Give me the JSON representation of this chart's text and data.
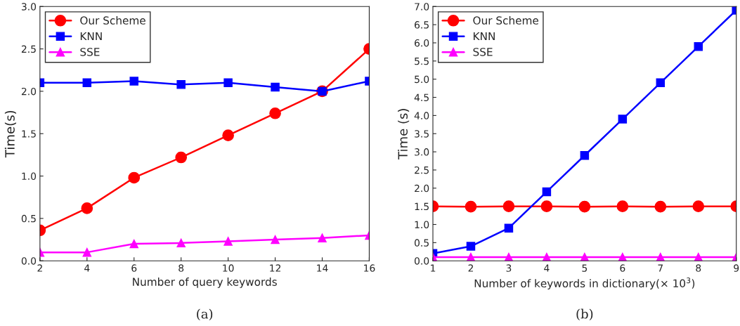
{
  "chart_data": [
    {
      "type": "line",
      "xlabel": "Number of query keywords",
      "ylabel": "Time(s)",
      "annotations": [
        "(a)"
      ],
      "x": [
        2,
        4,
        6,
        8,
        10,
        12,
        14,
        16
      ],
      "series": [
        {
          "name": "Our Scheme",
          "color": "#ff0000",
          "marker": "circle",
          "values": [
            0.36,
            0.62,
            0.98,
            1.22,
            1.48,
            1.74,
            2.0,
            2.5
          ]
        },
        {
          "name": "KNN",
          "color": "#0000ff",
          "marker": "square",
          "values": [
            2.1,
            2.1,
            2.12,
            2.08,
            2.1,
            2.05,
            2.0,
            2.12
          ]
        },
        {
          "name": "SSE",
          "color": "#ff00ff",
          "marker": "triangle",
          "values": [
            0.1,
            0.1,
            0.2,
            0.21,
            0.23,
            0.25,
            0.27,
            0.3
          ]
        }
      ],
      "xlim": [
        2,
        16
      ],
      "xticks": [
        2,
        4,
        6,
        8,
        10,
        12,
        14,
        16
      ],
      "ylim": [
        0,
        3.0
      ],
      "yticks": [
        {
          "value": 0,
          "label": "0.0"
        },
        0.5,
        {
          "value": 1,
          "label": "1.0"
        },
        1.5,
        {
          "value": 2,
          "label": "2.0"
        },
        2.5,
        {
          "value": 3,
          "label": "3.0"
        }
      ],
      "grid": false,
      "legend": "top left",
      "line_style": "solid"
    },
    {
      "type": "line",
      "xlabel": "Number of keywords in dictionary(× 10$^{3}$)",
      "ylabel": "Time (s)",
      "annotations": [
        "(b)"
      ],
      "x": [
        1,
        2,
        3,
        4,
        5,
        6,
        7,
        8,
        9
      ],
      "series": [
        {
          "name": "Our Scheme",
          "color": "#ff0000",
          "marker": "circle",
          "values": [
            1.5,
            1.49,
            1.5,
            1.5,
            1.49,
            1.5,
            1.49,
            1.5,
            1.5
          ]
        },
        {
          "name": "KNN",
          "color": "#0000ff",
          "marker": "square",
          "values": [
            0.2,
            0.4,
            0.9,
            1.9,
            2.9,
            3.9,
            4.9,
            5.9,
            6.9
          ]
        },
        {
          "name": "SSE",
          "color": "#ff00ff",
          "marker": "triangle",
          "values": [
            0.1,
            0.1,
            0.1,
            0.1,
            0.1,
            0.1,
            0.1,
            0.1,
            0.1
          ]
        }
      ],
      "xlim": [
        1,
        9
      ],
      "xticks": [
        1,
        2,
        3,
        4,
        5,
        6,
        7,
        8,
        9
      ],
      "ylim": [
        0,
        7.0
      ],
      "yticks": [
        {
          "value": 0,
          "label": "0.0"
        },
        0.5,
        {
          "value": 1,
          "label": "1.0"
        },
        1.5,
        {
          "value": 2,
          "label": "2.0"
        },
        2.5,
        {
          "value": 3,
          "label": "3.0"
        },
        3.5,
        {
          "value": 4,
          "label": "4.0"
        },
        4.5,
        {
          "value": 5,
          "label": "5.0"
        },
        5.5,
        {
          "value": 6,
          "label": "6.0"
        },
        6.5,
        {
          "value": 7,
          "label": "7.0"
        }
      ],
      "grid": false,
      "legend": "top left",
      "line_style": "solid"
    }
  ]
}
